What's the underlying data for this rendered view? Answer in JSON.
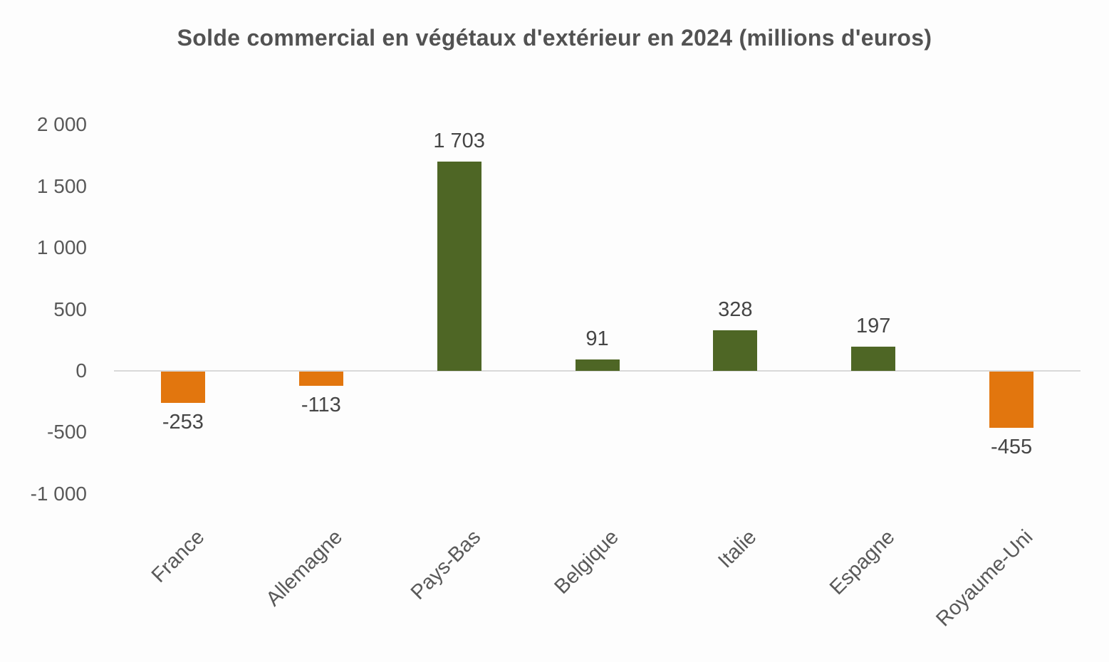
{
  "chart_data": {
    "type": "bar",
    "title": "Solde commercial en végétaux d'extérieur en 2024 (millions d'euros)",
    "categories": [
      "France",
      "Allemagne",
      "Pays-Bas",
      "Belgique",
      "Italie",
      "Espagne",
      "Royaume-Uni"
    ],
    "values": [
      -253,
      -113,
      1703,
      91,
      328,
      197,
      -455
    ],
    "data_labels": [
      "-253",
      "-113",
      "1 703",
      "91",
      "328",
      "197",
      "-455"
    ],
    "xlabel": "",
    "ylabel": "",
    "y_axis": {
      "range": [
        -1000,
        2000
      ],
      "tick_step": 500,
      "ticks": [
        {
          "value": 2000,
          "label": "2 000"
        },
        {
          "value": 1500,
          "label": "1 500"
        },
        {
          "value": 1000,
          "label": "1 000"
        },
        {
          "value": 500,
          "label": "500"
        },
        {
          "value": 0,
          "label": "0"
        },
        {
          "value": -500,
          "label": "-500"
        },
        {
          "value": -1000,
          "label": "-1 000"
        }
      ]
    },
    "grid": false,
    "legend": "none",
    "colors": {
      "positive_bar": "#4e6625",
      "negative_bar": "#e2760e",
      "zero_axis_line": "#d9d9d9",
      "tick_text": "#595959",
      "data_label_text": "#454545",
      "title_text": "#525252",
      "background": "#fdfdfd"
    }
  }
}
